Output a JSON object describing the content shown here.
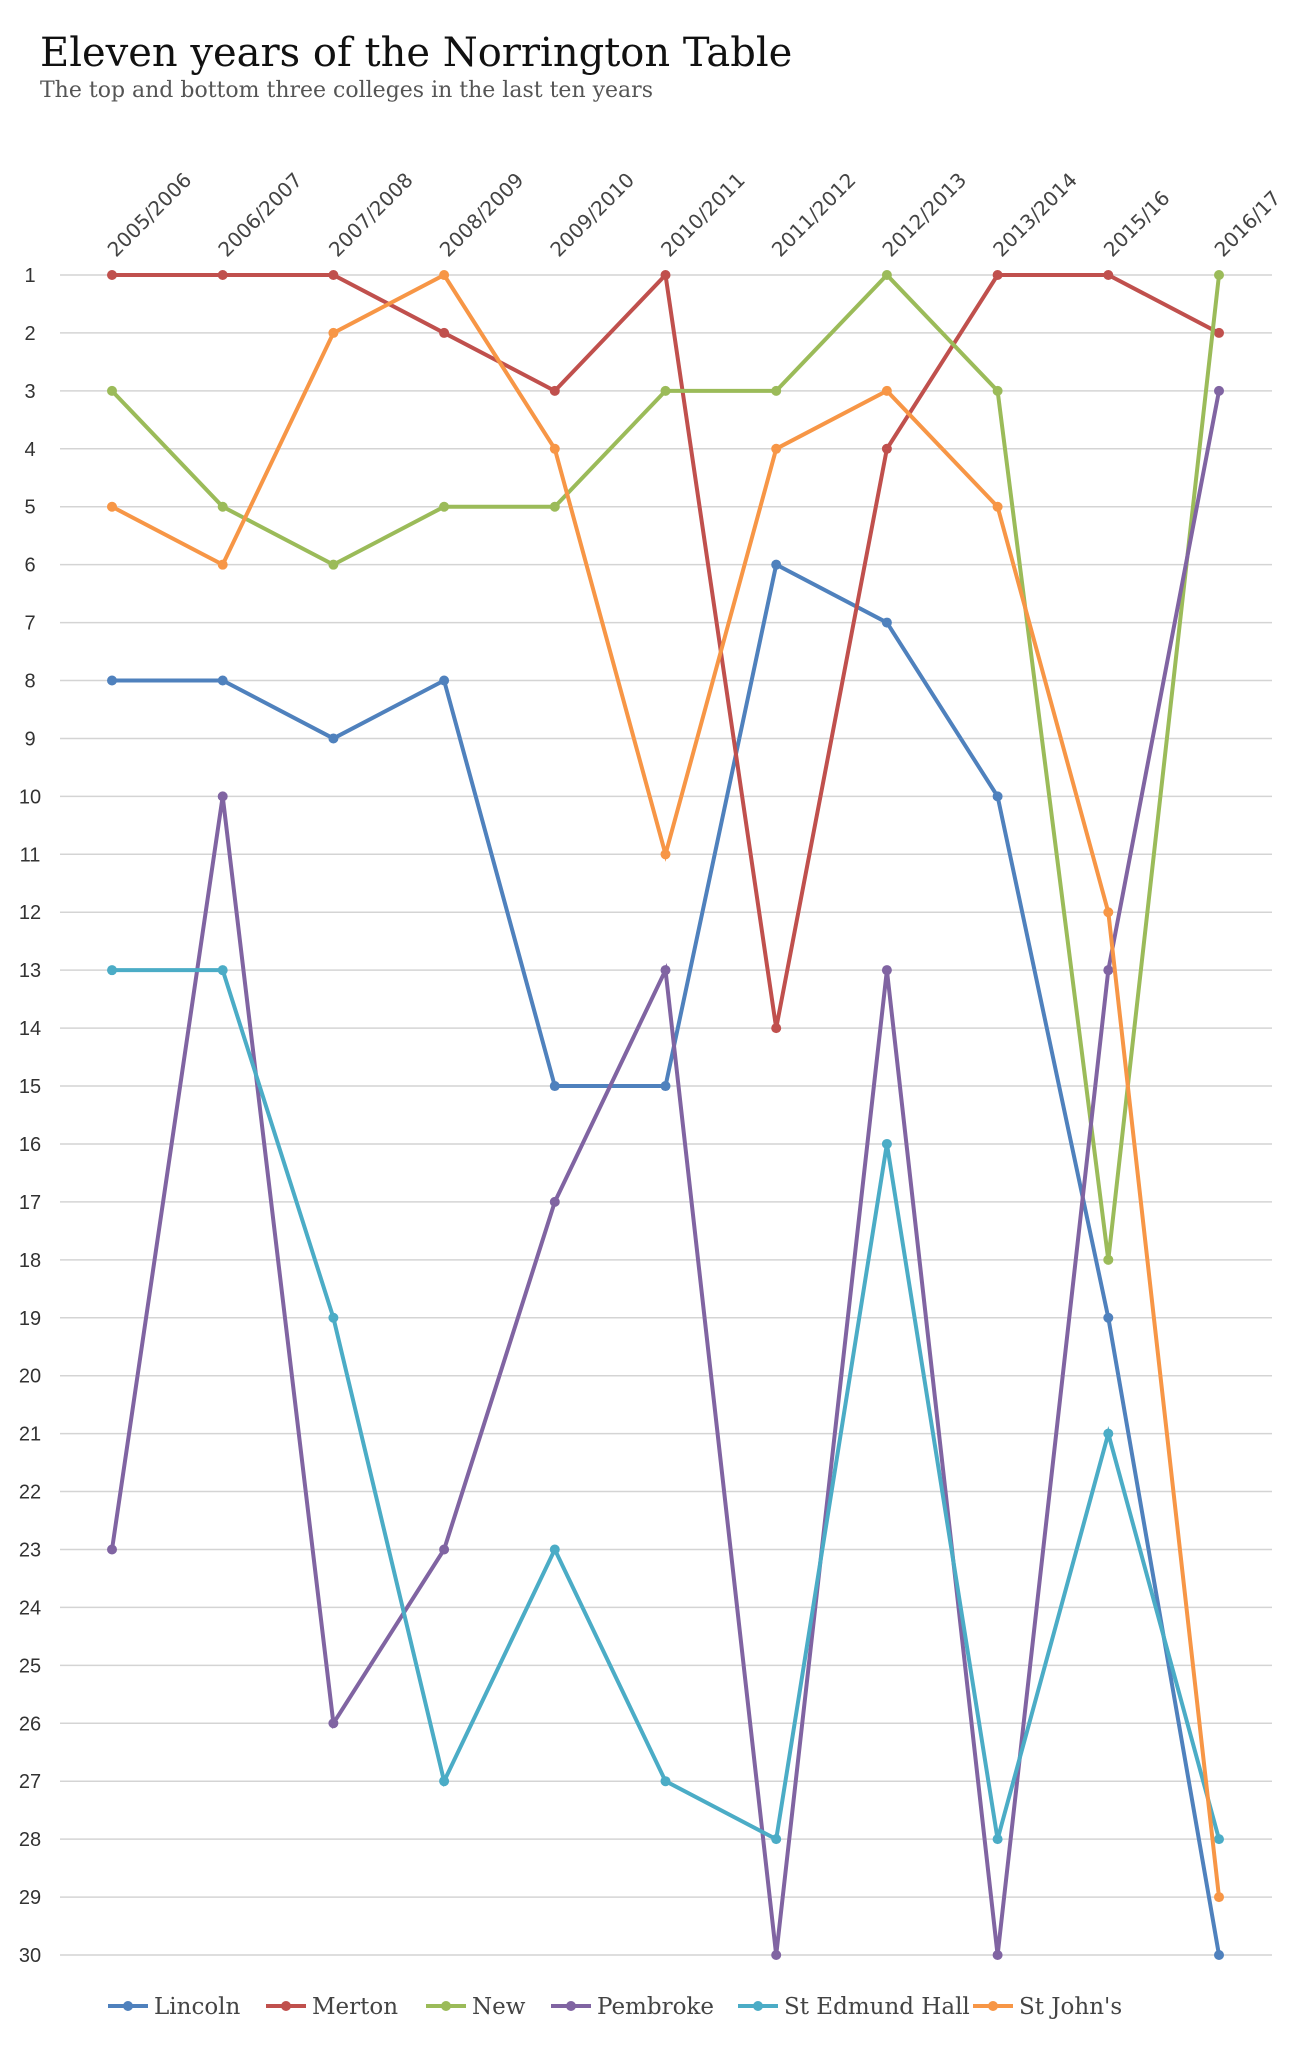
{
  "chart_data": {
    "type": "line",
    "title": "Eleven years of the Norrington Table",
    "subtitle": "The top and bottom three colleges in the last ten years",
    "categories": [
      "2005/2006",
      "2006/2007",
      "2007/2008",
      "2008/2009",
      "2009/2010",
      "2010/2011",
      "2011/2012",
      "2012/2013",
      "2013/2014",
      "2015/16",
      "2016/17"
    ],
    "ylim": [
      1,
      30
    ],
    "y_reversed": true,
    "y_ticks": [
      "1",
      "2",
      "3",
      "4",
      "5",
      "6",
      "7",
      "8",
      "9",
      "10",
      "11",
      "12",
      "13",
      "14",
      "15",
      "16",
      "17",
      "18",
      "19",
      "20",
      "21",
      "22",
      "23",
      "24",
      "25",
      "26",
      "27",
      "28",
      "29",
      "30"
    ],
    "grid": true,
    "legend_position": "bottom",
    "series": [
      {
        "name": "Lincoln",
        "color": "#4F81BD",
        "values": [
          8,
          8,
          9,
          8,
          15,
          15,
          6,
          7,
          10,
          19,
          30
        ]
      },
      {
        "name": "Merton",
        "color": "#C0504D",
        "values": [
          1,
          1,
          1,
          2,
          3,
          1,
          14,
          4,
          1,
          1,
          2
        ]
      },
      {
        "name": "New",
        "color": "#9BBB59",
        "values": [
          3,
          5,
          6,
          5,
          5,
          3,
          3,
          1,
          3,
          18,
          1
        ]
      },
      {
        "name": "Pembroke",
        "color": "#8064A2",
        "values": [
          23,
          10,
          26,
          23,
          17,
          13,
          30,
          13,
          30,
          13,
          3
        ]
      },
      {
        "name": "St Edmund Hall",
        "color": "#4BACC6",
        "values": [
          13,
          13,
          19,
          27,
          23,
          27,
          28,
          16,
          28,
          21,
          28
        ]
      },
      {
        "name": "St John's",
        "color": "#F79646",
        "values": [
          5,
          6,
          2,
          1,
          4,
          11,
          4,
          3,
          5,
          12,
          29
        ]
      }
    ]
  }
}
